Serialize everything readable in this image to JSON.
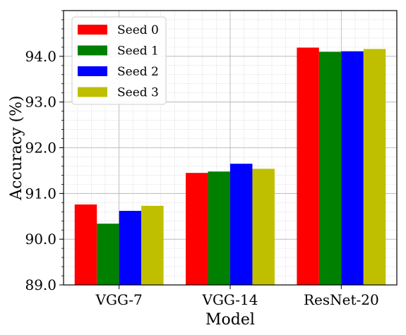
{
  "chart_data": {
    "type": "bar",
    "title": "",
    "xlabel": "Model",
    "ylabel": "Accuracy (%)",
    "categories": [
      "VGG-7",
      "VGG-14",
      "ResNet-20"
    ],
    "series": [
      {
        "name": "Seed 0",
        "color": "#ff0000",
        "values": [
          90.76,
          91.45,
          94.19
        ]
      },
      {
        "name": "Seed 1",
        "color": "#008000",
        "values": [
          90.34,
          91.48,
          94.1
        ]
      },
      {
        "name": "Seed 2",
        "color": "#0000ff",
        "values": [
          90.62,
          91.65,
          94.11
        ]
      },
      {
        "name": "Seed 3",
        "color": "#bfbf00",
        "values": [
          90.73,
          91.54,
          94.16
        ]
      }
    ],
    "ylim": [
      89.0,
      95.0
    ],
    "yticks": [
      89.0,
      90.0,
      91.0,
      92.0,
      93.0,
      94.0
    ],
    "ytick_labels": [
      "89.0",
      "90.0",
      "91.0",
      "92.0",
      "93.0",
      "94.0"
    ],
    "grid": true,
    "minor_grid": true,
    "legend_position": "top-left"
  }
}
